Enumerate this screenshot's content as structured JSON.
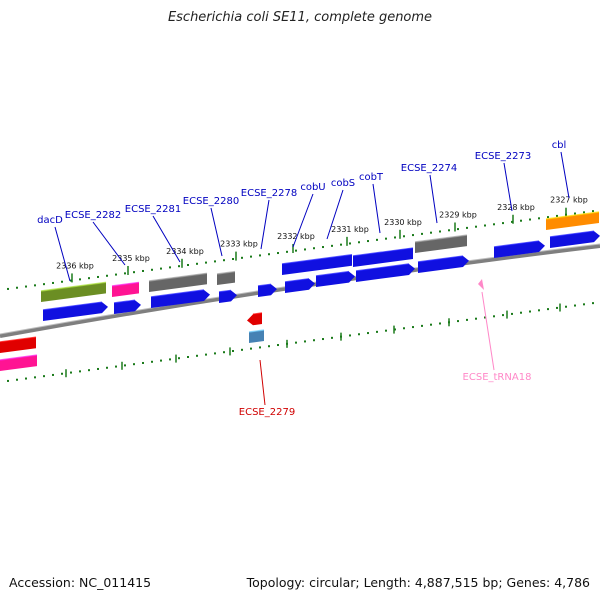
{
  "title": "Escherichia coli SE11, complete genome",
  "accession": "Accession: NC_011415",
  "summary": "Topology: circular; Length: 4,887,515 bp; Genes: 4,786",
  "colors": {
    "backbone": "#7f7f7f",
    "cds": "#1010e0",
    "hypothetical": "#666666",
    "magenta": "#ff1493",
    "olive": "#6b8e23",
    "orange": "#ff8c00",
    "red": "#e00000",
    "steel": "#4682b4",
    "trna": "#ff88c8",
    "tick": "#1a7a1a",
    "label_blue": "#0000c0",
    "label_red": "#d00000",
    "label_pink": "#ff88c8"
  },
  "ticks": [
    "2336 kbp",
    "2335 kbp",
    "2334 kbp",
    "2333 kbp",
    "2332 kbp",
    "2331 kbp",
    "2330 kbp",
    "2329 kbp",
    "2328 kbp",
    "2327 kbp"
  ],
  "genes": [
    "dacD",
    "ECSE_2282",
    "ECSE_2281",
    "ECSE_2280",
    "ECSE_2278",
    "cobU",
    "cobS",
    "cobT",
    "ECSE_2274",
    "ECSE_2273",
    "cbl",
    "ECSE_2279",
    "ECSE_tRNA18"
  ]
}
